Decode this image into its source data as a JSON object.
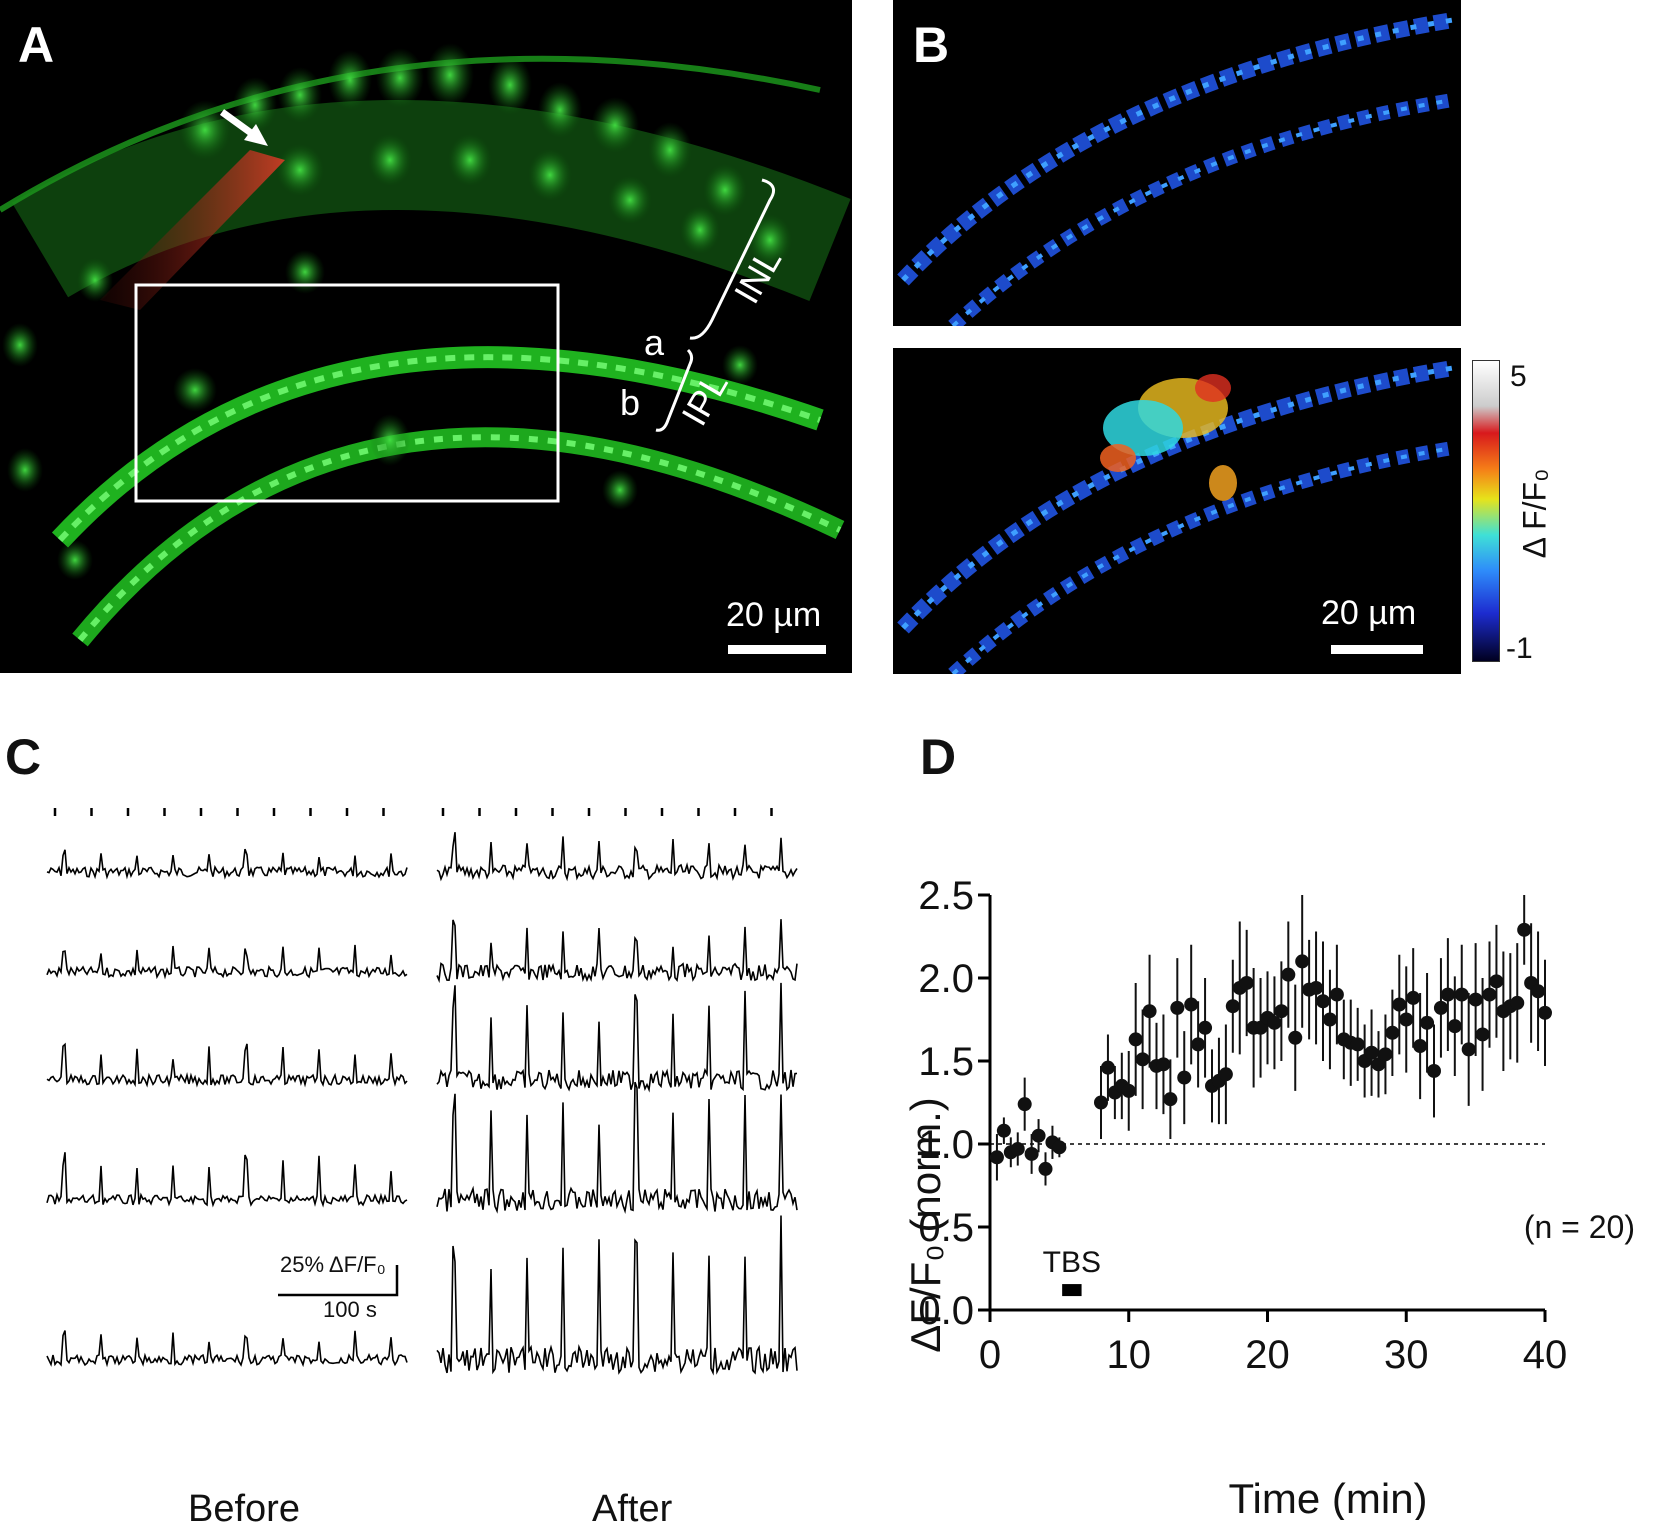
{
  "panelA": {
    "letter": "A",
    "scale_label": "20 µm",
    "labels": {
      "inl": "INL",
      "ipl": "IPL",
      "a": "a",
      "b": "b"
    }
  },
  "panelB": {
    "letter": "B",
    "scale_label": "20 µm",
    "colorbar": {
      "max": "5",
      "min": "-1",
      "label": "Δ F/F₀"
    }
  },
  "panelC": {
    "letter": "C",
    "scale_y": "25% ΔF/F₀",
    "scale_x": "100 s",
    "before_label": "Before",
    "after_label": "After",
    "traces": 5
  },
  "panelD": {
    "letter": "D",
    "annotation_n": "(n = 20)",
    "annotation_tbs": "TBS"
  },
  "chart_data": {
    "type": "scatter",
    "xlabel": "Time (min)",
    "ylabel": "ΔF/F₀ (norm.)",
    "xlim": [
      0,
      40
    ],
    "ylim": [
      0,
      2.5
    ],
    "xticks": [
      "0",
      "10",
      "20",
      "30",
      "40"
    ],
    "yticks": [
      "0.0",
      "0.5",
      "1.0",
      "1.5",
      "2.0",
      "2.5"
    ],
    "baseline": 1.0,
    "tbs_interval": [
      5.2,
      6.6
    ],
    "series": [
      {
        "x": [
          0.5,
          1.0,
          1.5,
          2.0,
          2.5,
          3.0,
          3.5,
          4.0,
          4.5,
          5.0,
          8.0,
          8.5,
          9.0,
          9.5,
          10.0,
          10.5,
          11.0,
          11.5,
          12.0,
          12.5,
          13.0,
          13.5,
          14.0,
          14.5,
          15.0,
          15.5,
          16.0,
          16.5,
          17.0,
          17.5,
          18.0,
          18.5,
          19.0,
          19.5,
          20.0,
          20.5,
          21.0,
          21.5,
          22.0,
          22.5,
          23.0,
          23.5,
          24.0,
          24.5,
          25.0,
          25.5,
          26.0,
          26.5,
          27.0,
          27.5,
          28.0,
          28.5,
          29.0,
          29.5,
          30.0,
          30.5,
          31.0,
          31.5,
          32.0,
          32.5,
          33.0,
          33.5,
          34.0,
          34.5,
          35.0,
          35.5,
          36.0,
          36.5,
          37.0,
          37.5,
          38.0,
          38.5,
          39.0,
          39.5,
          40.0
        ],
        "y": [
          0.92,
          1.08,
          0.95,
          0.97,
          1.24,
          0.94,
          1.05,
          0.85,
          1.01,
          0.98,
          1.25,
          1.46,
          1.31,
          1.35,
          1.32,
          1.63,
          1.51,
          1.8,
          1.47,
          1.48,
          1.27,
          1.82,
          1.4,
          1.84,
          1.6,
          1.7,
          1.35,
          1.38,
          1.42,
          1.83,
          1.94,
          1.97,
          1.7,
          1.7,
          1.76,
          1.73,
          1.8,
          2.02,
          1.64,
          2.1,
          1.93,
          1.94,
          1.86,
          1.75,
          1.9,
          1.63,
          1.61,
          1.6,
          1.5,
          1.55,
          1.48,
          1.54,
          1.67,
          1.84,
          1.75,
          1.88,
          1.59,
          1.73,
          1.44,
          1.82,
          1.9,
          1.71,
          1.9,
          1.57,
          1.87,
          1.66,
          1.9,
          1.98,
          1.8,
          1.83,
          1.85,
          2.29,
          1.97,
          1.92,
          1.79
        ],
        "err": [
          0.14,
          0.08,
          0.09,
          0.1,
          0.16,
          0.12,
          0.1,
          0.1,
          0.1,
          0.06,
          0.22,
          0.2,
          0.16,
          0.2,
          0.24,
          0.34,
          0.3,
          0.34,
          0.26,
          0.3,
          0.24,
          0.3,
          0.28,
          0.36,
          0.26,
          0.3,
          0.22,
          0.26,
          0.3,
          0.28,
          0.4,
          0.32,
          0.36,
          0.3,
          0.28,
          0.28,
          0.3,
          0.32,
          0.32,
          0.4,
          0.3,
          0.34,
          0.36,
          0.3,
          0.3,
          0.24,
          0.26,
          0.22,
          0.22,
          0.26,
          0.2,
          0.24,
          0.26,
          0.3,
          0.32,
          0.3,
          0.32,
          0.3,
          0.28,
          0.3,
          0.34,
          0.3,
          0.3,
          0.34,
          0.34,
          0.34,
          0.32,
          0.34,
          0.36,
          0.32,
          0.36,
          0.21,
          0.36,
          0.36,
          0.32
        ]
      }
    ]
  },
  "colors": {
    "gfp": "#29d42a",
    "dye": "#d43a2a",
    "marker": "#111111"
  }
}
